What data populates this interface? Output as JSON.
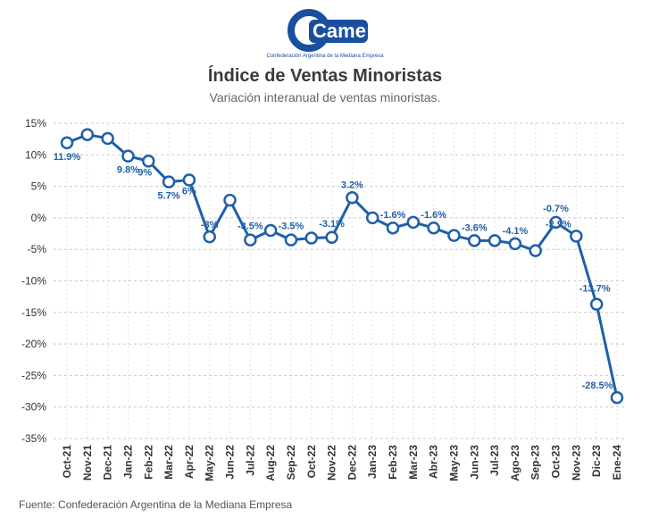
{
  "header": {
    "logo_text": "Came",
    "logo_caption": "Confederación Argentina de la Mediana Empresa"
  },
  "chart_data": {
    "type": "line",
    "title": "Índice de Ventas Minoristas",
    "subtitle": "Variación interanual de ventas minoristas.",
    "xlabel": "",
    "ylabel": "",
    "ylim": [
      -35,
      15
    ],
    "yticks": [
      15,
      10,
      5,
      0,
      -5,
      -10,
      -15,
      -20,
      -25,
      -30,
      -35
    ],
    "ytick_labels": [
      "15%",
      "10%",
      "5%",
      "0%",
      "-5%",
      "-10%",
      "-15%",
      "-20%",
      "-25%",
      "-30%",
      "-35%"
    ],
    "grid": true,
    "categories": [
      "Oct-21",
      "Nov-21",
      "Dec-21",
      "Jan-22",
      "Feb-22",
      "Mar-22",
      "Apr-22",
      "May-22",
      "Jun-22",
      "Jul-22",
      "Aug-22",
      "Sep-22",
      "Oct-22",
      "Nov-22",
      "Dec-22",
      "Jan-23",
      "Feb-23",
      "Mar-23",
      "Abr-23",
      "May-23",
      "Jun-23",
      "Jul-23",
      "Ago-23",
      "Sep-23",
      "Oct-23",
      "Nov-23",
      "Dic-23",
      "Ene-24"
    ],
    "series": [
      {
        "color": "#1f5fa8",
        "values": [
          11.9,
          13.2,
          12.6,
          9.8,
          9.0,
          5.7,
          6.0,
          -3.0,
          2.8,
          -3.5,
          -2.0,
          -3.5,
          -3.2,
          -3.1,
          3.2,
          0.0,
          -1.6,
          -0.7,
          -1.6,
          -2.8,
          -3.6,
          -3.6,
          -4.1,
          -5.2,
          -0.7,
          -2.9,
          -13.7,
          -28.5
        ]
      }
    ],
    "data_labels": [
      "11.9%",
      "",
      "",
      "9.8%",
      "9%",
      "5.7%",
      "6%",
      "-3%",
      "",
      "-3.5%",
      "",
      "-3.5%",
      "",
      "-3.1%",
      "3.2%",
      "",
      "-1.6%",
      "",
      "-1.6%",
      "",
      "-3.6%",
      "",
      "-4.1%",
      "",
      "-0.7%",
      "-2.9%",
      "-13.7%",
      "-28.5%"
    ]
  },
  "footer": {
    "source": "Fuente: Confederación Argentina de la Mediana Empresa"
  },
  "colors": {
    "line": "#1f5fa8",
    "logo": "#1a4fa0",
    "grid": "#c8c8c8"
  }
}
